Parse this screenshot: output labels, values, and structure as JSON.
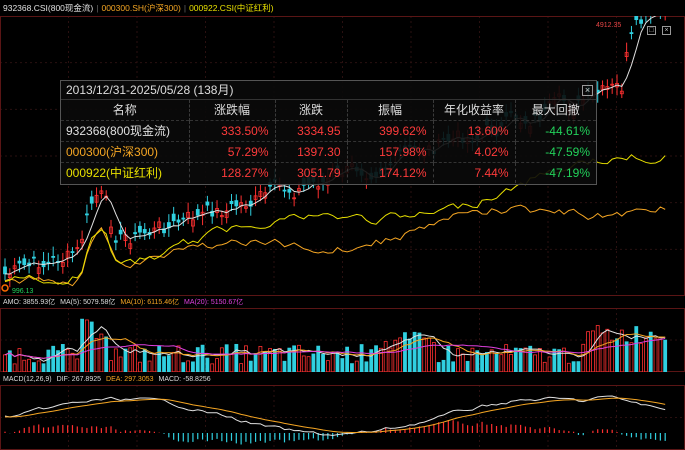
{
  "legend": {
    "s1": "932368.CSI(800现金流)",
    "s2": "000300.SH(沪深300)",
    "s3": "000922.CSI(中证红利)",
    "s1_color": "#e0e0e0",
    "s2_color": "#f5a623",
    "s3_color": "#e8e000"
  },
  "price_high": "4912.35",
  "price_low": "996.13",
  "popup": {
    "title": "2013/12/31-2025/05/28 (138月)",
    "headers": [
      "名称",
      "涨跌幅",
      "涨跌",
      "振幅",
      "年化收益率",
      "最大回撤"
    ],
    "rows": [
      {
        "name": "932368(800现金流)",
        "color": "#e0e0e0",
        "change_pct": "333.50%",
        "change": "3334.95",
        "amplitude": "399.62%",
        "annual": "13.60%",
        "drawdown": "-44.61%"
      },
      {
        "name": "000300(沪深300)",
        "color": "#f5a623",
        "change_pct": "57.29%",
        "change": "1397.30",
        "amplitude": "157.98%",
        "annual": "4.02%",
        "drawdown": "-47.59%"
      },
      {
        "name": "000922(中证红利)",
        "color": "#e8e000",
        "change_pct": "128.27%",
        "change": "3051.79",
        "amplitude": "174.12%",
        "annual": "7.44%",
        "drawdown": "-47.19%"
      }
    ]
  },
  "amo": {
    "label": "AMO: 3855.93亿",
    "ma5": "MA(5): 5079.58亿",
    "ma10": "MA(10): 6115.46亿",
    "ma20": "MA(20): 5150.67亿"
  },
  "macd": {
    "label": "MACD(12,26,9)",
    "dif": "DIF: 267.8925",
    "dea": "DEA: 297.3053",
    "macd": "MACD: -58.8256"
  }
}
